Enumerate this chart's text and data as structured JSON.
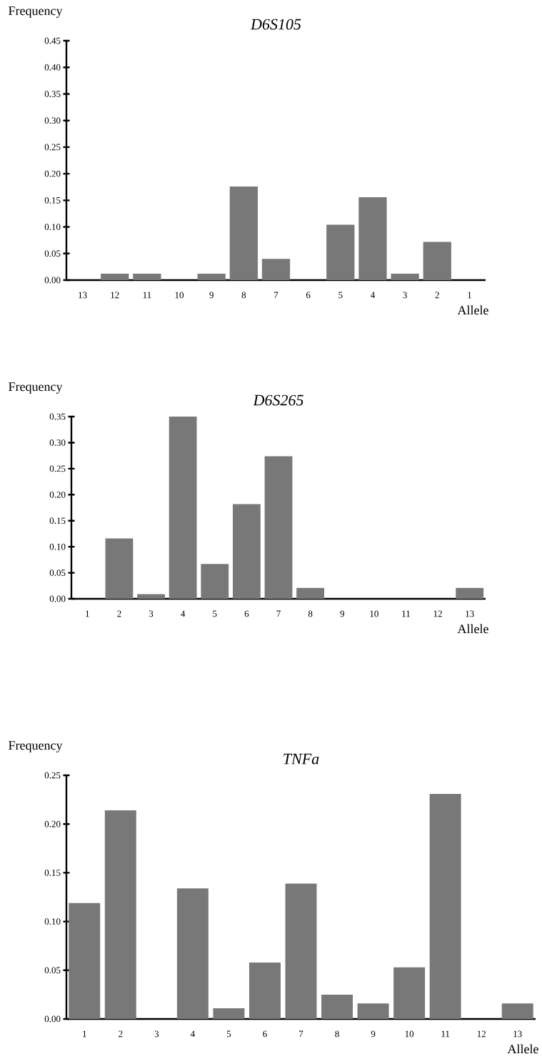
{
  "chart_data": [
    {
      "type": "bar",
      "title": "D6S105",
      "ylabel": "Frequency",
      "xlabel": "Allele",
      "color": "#787878",
      "categories": [
        "13",
        "12",
        "11",
        "10",
        "9",
        "8",
        "7",
        "6",
        "5",
        "4",
        "3",
        "2",
        "1"
      ],
      "values": [
        0,
        0.012,
        0.012,
        0,
        0.012,
        0.176,
        0.04,
        0,
        0.104,
        0.156,
        0.012,
        0.072,
        0
      ],
      "ylim": [
        0,
        0.45
      ],
      "yticks": [
        {
          "value": 0,
          "label": "0.00"
        },
        {
          "value": 0.05,
          "label": "0.05"
        },
        {
          "value": 0.1,
          "label": "0.10"
        },
        {
          "value": 0.15,
          "label": "0.15"
        },
        {
          "value": 0.2,
          "label": "0.20"
        },
        {
          "value": 0.25,
          "label": "0.25"
        },
        {
          "value": 0.3,
          "label": "0.30"
        },
        {
          "value": 0.35,
          "label": "0.35"
        },
        {
          "value": 0.4,
          "label": "0.40"
        },
        {
          "value": 0.45,
          "label": "0.45"
        }
      ]
    },
    {
      "type": "bar",
      "title": "D6S265",
      "ylabel": "Frequency",
      "xlabel": "Allele",
      "color": "#787878",
      "categories": [
        "1",
        "2",
        "3",
        "4",
        "5",
        "6",
        "7",
        "8",
        "9",
        "10",
        "11",
        "12",
        "13"
      ],
      "values": [
        0,
        0.116,
        0.009,
        0.35,
        0.067,
        0.182,
        0.274,
        0.021,
        0,
        0,
        0,
        0,
        0.021
      ],
      "ylim": [
        0,
        0.35
      ],
      "yticks": [
        {
          "value": 0,
          "label": "0.00"
        },
        {
          "value": 0.05,
          "label": "0.05"
        },
        {
          "value": 0.1,
          "label": "0.10"
        },
        {
          "value": 0.15,
          "label": "0.15"
        },
        {
          "value": 0.2,
          "label": "0.20"
        },
        {
          "value": 0.25,
          "label": "0.25"
        },
        {
          "value": 0.3,
          "label": "0.30"
        },
        {
          "value": 0.35,
          "label": "0.35"
        }
      ]
    },
    {
      "type": "bar",
      "title": "TNFa",
      "ylabel": "Frequency",
      "xlabel": "Allele",
      "color": "#787878",
      "categories": [
        "1",
        "2",
        "3",
        "4",
        "5",
        "6",
        "7",
        "8",
        "9",
        "10",
        "11",
        "12",
        "13"
      ],
      "values": [
        0.119,
        0.214,
        0,
        0.134,
        0.011,
        0.058,
        0.139,
        0.025,
        0.016,
        0.053,
        0.231,
        0,
        0.016
      ],
      "ylim": [
        0,
        0.25
      ],
      "yticks": [
        {
          "value": 0,
          "label": "0.00"
        },
        {
          "value": 0.05,
          "label": "0.05"
        },
        {
          "value": 0.1,
          "label": "0.10"
        },
        {
          "value": 0.15,
          "label": "0.15"
        },
        {
          "value": 0.2,
          "label": "0.20"
        },
        {
          "value": 0.25,
          "label": "0.25"
        }
      ]
    }
  ]
}
